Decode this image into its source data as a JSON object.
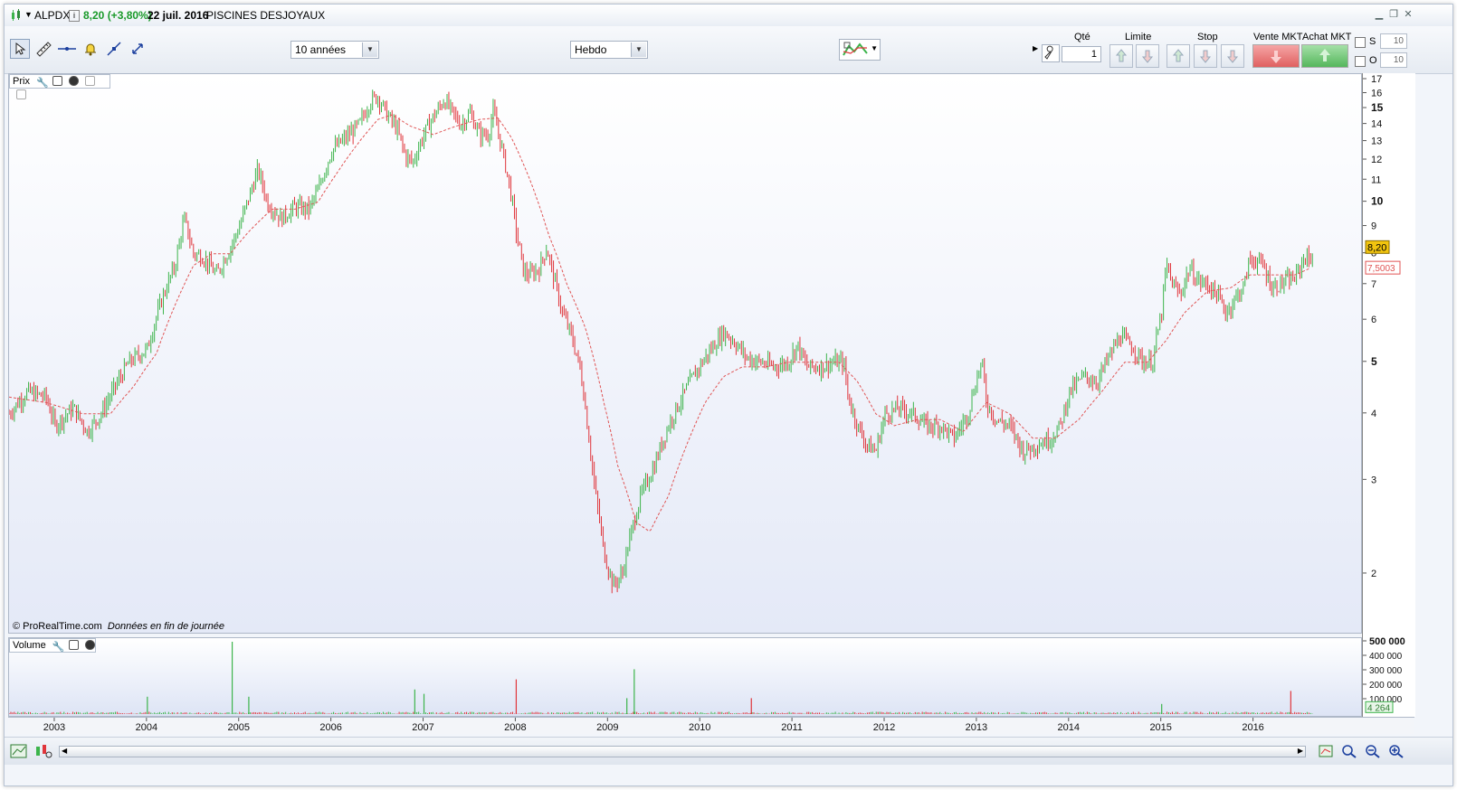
{
  "header": {
    "symbol": "ALPDX",
    "info_icon": "i",
    "price_change": "8,20 (+3,80%)",
    "date": "22 juil. 2016",
    "company": "PISCINES DESJOYAUX"
  },
  "toolbar": {
    "period": "10 années",
    "interval": "Hebdo",
    "qty_label": "Qté",
    "qty_value": "1",
    "limit_label": "Limite",
    "stop_label": "Stop",
    "sell_label": "Vente MKT",
    "buy_label": "Achat MKT",
    "s_label": "S",
    "s_value": "10",
    "o_label": "O",
    "o_value": "10"
  },
  "price_pane": {
    "label": "Prix",
    "footer": "© ProRealTime.com",
    "footer_italic": "Données en fin de journée",
    "last_price_tag": "8,20",
    "ma_tag": "7,5003"
  },
  "volume_pane": {
    "label": "Volume",
    "last_volume_tag": "4 264",
    "ticks": [
      "500 000",
      "400 000",
      "300 000",
      "200 000",
      "100 000"
    ]
  },
  "colors": {
    "up": "#3cb44b",
    "down": "#e0353b",
    "ma": "#e05555",
    "price_tag": "#f1c40f"
  },
  "chart_data": {
    "type": "candlestick",
    "series": [
      {
        "name": "",
        "style": "weekly OHLC bars"
      },
      {
        "name": "",
        "style": "dashed moving average"
      }
    ],
    "x_ticks": [
      "2003",
      "2004",
      "2005",
      "2006",
      "2007",
      "2008",
      "2009",
      "2010",
      "2011",
      "2012",
      "2013",
      "2014",
      "2015",
      "2016"
    ],
    "y_ticks": [
      "17",
      "16",
      "15",
      "14",
      "13",
      "12",
      "11",
      "10",
      "9",
      "8",
      "7",
      "6",
      "5",
      "4",
      "3",
      "2"
    ],
    "y_bold_ticks": [
      "15",
      "10",
      "5"
    ],
    "y_scale": "log",
    "ylim": [
      1.6,
      17
    ],
    "price_points": [
      [
        2002.5,
        4.0
      ],
      [
        2002.7,
        4.4
      ],
      [
        2002.9,
        4.3
      ],
      [
        2003.0,
        3.8
      ],
      [
        2003.2,
        4.1
      ],
      [
        2003.35,
        3.7
      ],
      [
        2003.5,
        4.0
      ],
      [
        2003.65,
        4.5
      ],
      [
        2003.8,
        5.0
      ],
      [
        2004.0,
        5.3
      ],
      [
        2004.15,
        6.5
      ],
      [
        2004.3,
        7.6
      ],
      [
        2004.4,
        9.3
      ],
      [
        2004.5,
        8.0
      ],
      [
        2004.6,
        7.9
      ],
      [
        2004.75,
        7.3
      ],
      [
        2004.9,
        8.2
      ],
      [
        2005.0,
        9.0
      ],
      [
        2005.1,
        10.2
      ],
      [
        2005.2,
        11.5
      ],
      [
        2005.3,
        10.0
      ],
      [
        2005.45,
        9.3
      ],
      [
        2005.6,
        9.8
      ],
      [
        2005.75,
        9.7
      ],
      [
        2005.85,
        10.5
      ],
      [
        2006.0,
        12.5
      ],
      [
        2006.15,
        13.2
      ],
      [
        2006.3,
        14.0
      ],
      [
        2006.42,
        15.5
      ],
      [
        2006.5,
        15.8
      ],
      [
        2006.6,
        14.6
      ],
      [
        2006.7,
        13.8
      ],
      [
        2006.8,
        12.2
      ],
      [
        2006.88,
        11.9
      ],
      [
        2006.95,
        12.8
      ],
      [
        2007.05,
        14.0
      ],
      [
        2007.15,
        14.9
      ],
      [
        2007.22,
        15.6
      ],
      [
        2007.3,
        14.8
      ],
      [
        2007.4,
        14.0
      ],
      [
        2007.5,
        14.7
      ],
      [
        2007.6,
        13.4
      ],
      [
        2007.7,
        13.4
      ],
      [
        2007.75,
        14.8
      ],
      [
        2007.85,
        12.5
      ],
      [
        2007.95,
        10.2
      ],
      [
        2008.0,
        8.8
      ],
      [
        2008.08,
        7.4
      ],
      [
        2008.15,
        7.3
      ],
      [
        2008.25,
        7.5
      ],
      [
        2008.33,
        8.2
      ],
      [
        2008.4,
        7.3
      ],
      [
        2008.5,
        6.2
      ],
      [
        2008.6,
        5.6
      ],
      [
        2008.7,
        4.8
      ],
      [
        2008.78,
        3.7
      ],
      [
        2008.85,
        2.9
      ],
      [
        2008.95,
        2.2
      ],
      [
        2009.05,
        1.9
      ],
      [
        2009.15,
        2.0
      ],
      [
        2009.25,
        2.4
      ],
      [
        2009.35,
        2.8
      ],
      [
        2009.5,
        3.2
      ],
      [
        2009.65,
        3.8
      ],
      [
        2009.8,
        4.3
      ],
      [
        2009.95,
        4.8
      ],
      [
        2010.05,
        5.1
      ],
      [
        2010.15,
        5.4
      ],
      [
        2010.25,
        5.7
      ],
      [
        2010.35,
        5.5
      ],
      [
        2010.5,
        5.1
      ],
      [
        2010.65,
        5.0
      ],
      [
        2010.8,
        4.9
      ],
      [
        2010.95,
        5.0
      ],
      [
        2011.05,
        5.4
      ],
      [
        2011.15,
        4.9
      ],
      [
        2011.3,
        4.9
      ],
      [
        2011.45,
        5.0
      ],
      [
        2011.55,
        5.0
      ],
      [
        2011.6,
        4.3
      ],
      [
        2011.7,
        3.8
      ],
      [
        2011.8,
        3.5
      ],
      [
        2011.9,
        3.4
      ],
      [
        2012.0,
        4.0
      ],
      [
        2012.15,
        4.1
      ],
      [
        2012.3,
        4.0
      ],
      [
        2012.45,
        3.8
      ],
      [
        2012.6,
        3.8
      ],
      [
        2012.75,
        3.6
      ],
      [
        2012.9,
        4.0
      ],
      [
        2013.0,
        4.7
      ],
      [
        2013.05,
        5.0
      ],
      [
        2013.1,
        4.2
      ],
      [
        2013.2,
        3.9
      ],
      [
        2013.35,
        3.8
      ],
      [
        2013.5,
        3.4
      ],
      [
        2013.65,
        3.5
      ],
      [
        2013.8,
        3.6
      ],
      [
        2013.9,
        3.8
      ],
      [
        2014.0,
        4.4
      ],
      [
        2014.15,
        4.7
      ],
      [
        2014.3,
        4.6
      ],
      [
        2014.45,
        5.2
      ],
      [
        2014.55,
        5.6
      ],
      [
        2014.7,
        5.3
      ],
      [
        2014.8,
        5.0
      ],
      [
        2014.9,
        5.0
      ],
      [
        2015.0,
        6.2
      ],
      [
        2015.05,
        7.6
      ],
      [
        2015.12,
        7.0
      ],
      [
        2015.2,
        6.7
      ],
      [
        2015.3,
        7.5
      ],
      [
        2015.4,
        7.1
      ],
      [
        2015.5,
        7.0
      ],
      [
        2015.6,
        6.7
      ],
      [
        2015.7,
        6.2
      ],
      [
        2015.8,
        6.6
      ],
      [
        2015.9,
        7.0
      ],
      [
        2015.95,
        7.8
      ],
      [
        2016.0,
        7.8
      ],
      [
        2016.1,
        7.6
      ],
      [
        2016.2,
        6.9
      ],
      [
        2016.35,
        7.1
      ],
      [
        2016.45,
        7.2
      ],
      [
        2016.55,
        7.9
      ],
      [
        2016.6,
        7.8
      ],
      [
        2016.65,
        8.0
      ]
    ],
    "ma_points": [
      [
        2002.5,
        4.3
      ],
      [
        2002.9,
        4.2
      ],
      [
        2003.3,
        4.0
      ],
      [
        2003.6,
        4.0
      ],
      [
        2003.85,
        4.5
      ],
      [
        2004.1,
        5.2
      ],
      [
        2004.3,
        6.4
      ],
      [
        2004.5,
        7.6
      ],
      [
        2004.7,
        8.0
      ],
      [
        2004.9,
        8.0
      ],
      [
        2005.1,
        8.8
      ],
      [
        2005.35,
        9.7
      ],
      [
        2005.6,
        9.7
      ],
      [
        2005.85,
        10.0
      ],
      [
        2006.05,
        11.3
      ],
      [
        2006.3,
        13.0
      ],
      [
        2006.5,
        14.3
      ],
      [
        2006.65,
        14.6
      ],
      [
        2006.85,
        13.9
      ],
      [
        2007.1,
        13.4
      ],
      [
        2007.35,
        13.9
      ],
      [
        2007.6,
        14.3
      ],
      [
        2007.8,
        14.4
      ],
      [
        2007.95,
        13.2
      ],
      [
        2008.15,
        11.0
      ],
      [
        2008.35,
        8.7
      ],
      [
        2008.55,
        7.0
      ],
      [
        2008.75,
        5.8
      ],
      [
        2008.95,
        4.2
      ],
      [
        2009.1,
        3.2
      ],
      [
        2009.3,
        2.5
      ],
      [
        2009.45,
        2.4
      ],
      [
        2009.65,
        2.8
      ],
      [
        2009.85,
        3.5
      ],
      [
        2010.05,
        4.2
      ],
      [
        2010.25,
        4.7
      ],
      [
        2010.45,
        4.9
      ],
      [
        2010.7,
        4.9
      ],
      [
        2010.95,
        5.0
      ],
      [
        2011.2,
        5.0
      ],
      [
        2011.5,
        5.0
      ],
      [
        2011.7,
        4.6
      ],
      [
        2011.9,
        4.0
      ],
      [
        2012.1,
        3.8
      ],
      [
        2012.35,
        3.9
      ],
      [
        2012.6,
        3.9
      ],
      [
        2012.85,
        3.7
      ],
      [
        2013.1,
        4.2
      ],
      [
        2013.35,
        4.0
      ],
      [
        2013.6,
        3.6
      ],
      [
        2013.85,
        3.6
      ],
      [
        2014.1,
        3.9
      ],
      [
        2014.35,
        4.4
      ],
      [
        2014.6,
        5.0
      ],
      [
        2014.85,
        5.0
      ],
      [
        2015.05,
        5.5
      ],
      [
        2015.25,
        6.2
      ],
      [
        2015.5,
        6.8
      ],
      [
        2015.75,
        6.9
      ],
      [
        2015.95,
        7.3
      ],
      [
        2016.2,
        7.3
      ],
      [
        2016.45,
        7.3
      ],
      [
        2016.6,
        7.5
      ]
    ],
    "volume": {
      "ylim": [
        0,
        500000
      ],
      "spikes": [
        [
          2004.92,
          500000
        ],
        [
          2009.28,
          310000
        ],
        [
          2008.0,
          240000
        ],
        [
          2006.9,
          170000
        ],
        [
          2007.0,
          140000
        ],
        [
          2010.55,
          110000
        ],
        [
          2016.4,
          160000
        ],
        [
          2015.0,
          70000
        ],
        [
          2005.1,
          120000
        ],
        [
          2004.0,
          120000
        ],
        [
          2009.2,
          110000
        ]
      ]
    }
  }
}
